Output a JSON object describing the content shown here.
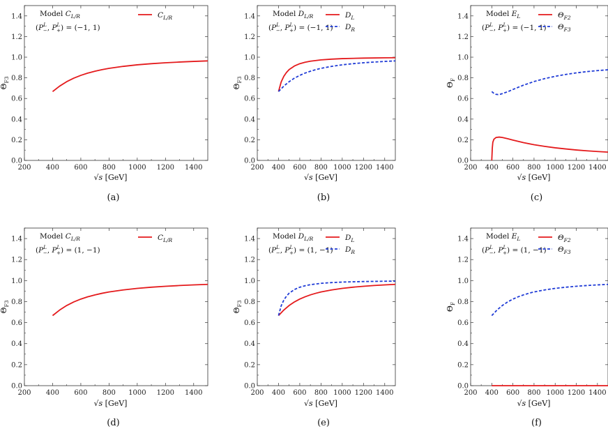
{
  "charts": [
    {
      "caption": "(a)",
      "ylabel": "Θ_F3",
      "ylabel_main": "Θ",
      "ylabel_sub": "F3",
      "xlabel_sqrt": "√s",
      "xlabel_unit": "[GeV]",
      "annotation": {
        "model": "Model C",
        "model_sub": "L/R",
        "pol": "(P",
        "pol_values": "(−1, 1)"
      },
      "series": [
        {
          "name": "C_{L/R}",
          "label_main": "C",
          "label_sub": "L/R",
          "color": "#e41a1c",
          "dash": "solid",
          "x": [
            400,
            450,
            500,
            550,
            600,
            650,
            700,
            750,
            800,
            900,
            1000,
            1100,
            1200,
            1300,
            1400,
            1500
          ],
          "y": [
            0.667,
            0.72,
            0.763,
            0.797,
            0.824,
            0.846,
            0.864,
            0.879,
            0.892,
            0.911,
            0.926,
            0.937,
            0.946,
            0.953,
            0.959,
            0.964
          ]
        }
      ]
    },
    {
      "caption": "(b)",
      "ylabel_main": "Θ",
      "ylabel_sub": "F3",
      "xlabel_sqrt": "√s",
      "xlabel_unit": "[GeV]",
      "annotation": {
        "model": "Model D",
        "model_sub": "L/R",
        "pol_values": "(−1, 1)"
      },
      "series": [
        {
          "name": "D_L",
          "label_main": "D",
          "label_sub": "L",
          "color": "#e41a1c",
          "dash": "solid",
          "x": [
            400,
            425,
            450,
            475,
            500,
            550,
            600,
            650,
            700,
            800,
            900,
            1000,
            1200,
            1400,
            1500
          ],
          "y": [
            0.667,
            0.76,
            0.815,
            0.852,
            0.88,
            0.915,
            0.937,
            0.951,
            0.961,
            0.974,
            0.981,
            0.986,
            0.991,
            0.994,
            0.995
          ]
        },
        {
          "name": "D_R",
          "label_main": "D",
          "label_sub": "R",
          "color": "#1f3bd6",
          "dash": "dashed",
          "x": [
            400,
            450,
            500,
            550,
            600,
            650,
            700,
            750,
            800,
            900,
            1000,
            1100,
            1200,
            1300,
            1400,
            1500
          ],
          "y": [
            0.667,
            0.72,
            0.763,
            0.797,
            0.824,
            0.846,
            0.864,
            0.879,
            0.892,
            0.911,
            0.926,
            0.937,
            0.946,
            0.953,
            0.959,
            0.964
          ]
        }
      ]
    },
    {
      "caption": "(c)",
      "ylabel_main": "Θ",
      "ylabel_sub": "F",
      "xlabel_sqrt": "√s",
      "xlabel_unit": "[GeV]",
      "annotation": {
        "model": "Model E",
        "model_sub": "L",
        "pol_values": "(−1, 1)"
      },
      "series": [
        {
          "name": "Θ_F2",
          "label_main": "Θ",
          "label_sub": "F2",
          "color": "#e41a1c",
          "dash": "solid",
          "x": [
            400,
            405,
            410,
            420,
            440,
            470,
            500,
            550,
            600,
            700,
            800,
            900,
            1000,
            1100,
            1200,
            1300,
            1400,
            1500
          ],
          "y": [
            0.0,
            0.12,
            0.175,
            0.205,
            0.222,
            0.226,
            0.222,
            0.21,
            0.197,
            0.172,
            0.152,
            0.136,
            0.122,
            0.111,
            0.101,
            0.093,
            0.086,
            0.08
          ]
        },
        {
          "name": "Θ_F3",
          "label_main": "Θ",
          "label_sub": "F3",
          "color": "#1f3bd6",
          "dash": "dashed",
          "x": [
            400,
            420,
            440,
            460,
            480,
            500,
            550,
            600,
            700,
            800,
            900,
            1000,
            1100,
            1200,
            1300,
            1400,
            1500
          ],
          "y": [
            0.667,
            0.65,
            0.64,
            0.638,
            0.641,
            0.647,
            0.665,
            0.687,
            0.729,
            0.764,
            0.792,
            0.815,
            0.833,
            0.848,
            0.86,
            0.87,
            0.878
          ]
        }
      ]
    },
    {
      "caption": "(d)",
      "ylabel_main": "Θ",
      "ylabel_sub": "F3",
      "xlabel_sqrt": "√s",
      "xlabel_unit": "[GeV]",
      "annotation": {
        "model": "Model C",
        "model_sub": "L/R",
        "pol_values": "(1, −1)"
      },
      "series": [
        {
          "name": "C_{L/R}",
          "label_main": "C",
          "label_sub": "L/R",
          "color": "#e41a1c",
          "dash": "solid",
          "x": [
            400,
            450,
            500,
            550,
            600,
            650,
            700,
            750,
            800,
            900,
            1000,
            1100,
            1200,
            1300,
            1400,
            1500
          ],
          "y": [
            0.667,
            0.72,
            0.763,
            0.797,
            0.824,
            0.846,
            0.864,
            0.879,
            0.892,
            0.911,
            0.926,
            0.937,
            0.946,
            0.953,
            0.959,
            0.964
          ]
        }
      ]
    },
    {
      "caption": "(e)",
      "ylabel_main": "Θ",
      "ylabel_sub": "F3",
      "xlabel_sqrt": "√s",
      "xlabel_unit": "[GeV]",
      "annotation": {
        "model": "Model D",
        "model_sub": "L/R",
        "pol_values": "(1, −1)"
      },
      "series": [
        {
          "name": "D_L",
          "label_main": "D",
          "label_sub": "L",
          "color": "#e41a1c",
          "dash": "solid",
          "x": [
            400,
            450,
            500,
            550,
            600,
            650,
            700,
            750,
            800,
            900,
            1000,
            1100,
            1200,
            1300,
            1400,
            1500
          ],
          "y": [
            0.667,
            0.72,
            0.763,
            0.797,
            0.824,
            0.846,
            0.864,
            0.879,
            0.892,
            0.911,
            0.926,
            0.937,
            0.946,
            0.953,
            0.959,
            0.964
          ]
        },
        {
          "name": "D_R",
          "label_main": "D",
          "label_sub": "R",
          "color": "#1f3bd6",
          "dash": "dashed",
          "x": [
            400,
            425,
            450,
            475,
            500,
            550,
            600,
            650,
            700,
            800,
            900,
            1000,
            1200,
            1400,
            1500
          ],
          "y": [
            0.667,
            0.76,
            0.815,
            0.852,
            0.88,
            0.915,
            0.937,
            0.951,
            0.961,
            0.974,
            0.981,
            0.986,
            0.991,
            0.994,
            0.995
          ]
        }
      ]
    },
    {
      "caption": "(f)",
      "ylabel_main": "Θ",
      "ylabel_sub": "F",
      "xlabel_sqrt": "√s",
      "xlabel_unit": "[GeV]",
      "annotation": {
        "model": "Model E",
        "model_sub": "L",
        "pol_values": "(1, −1)"
      },
      "series": [
        {
          "name": "Θ_F2",
          "label_main": "Θ",
          "label_sub": "F2",
          "color": "#e41a1c",
          "dash": "solid",
          "x": [
            400,
            1500
          ],
          "y": [
            0.0,
            0.0
          ]
        },
        {
          "name": "Θ_F3",
          "label_main": "Θ",
          "label_sub": "F3",
          "color": "#1f3bd6",
          "dash": "dashed",
          "x": [
            400,
            450,
            500,
            550,
            600,
            650,
            700,
            750,
            800,
            900,
            1000,
            1100,
            1200,
            1300,
            1400,
            1500
          ],
          "y": [
            0.667,
            0.72,
            0.763,
            0.797,
            0.824,
            0.846,
            0.864,
            0.879,
            0.892,
            0.911,
            0.926,
            0.937,
            0.946,
            0.953,
            0.959,
            0.964
          ]
        }
      ]
    }
  ],
  "chart_data": [
    {
      "type": "line",
      "panel": "(a)",
      "ylabel": "Θ_F3",
      "xlabel": "√s [GeV]",
      "xlim": [
        200,
        1500
      ],
      "ylim": [
        0,
        1.5
      ],
      "xticks": [
        200,
        400,
        600,
        800,
        1000,
        1200,
        1400
      ],
      "yticks": [
        0.0,
        0.2,
        0.4,
        0.6,
        0.8,
        1.0,
        1.2,
        1.4
      ],
      "annotations": [
        "Model C_{L/R}",
        "(P^L_−, P^L_+) = (−1, 1)"
      ],
      "legend": "top-right",
      "series": [
        {
          "name": "C_{L/R}",
          "x": [
            400,
            500,
            600,
            700,
            800,
            1000,
            1200,
            1500
          ],
          "y": [
            0.667,
            0.763,
            0.824,
            0.864,
            0.892,
            0.926,
            0.946,
            0.964
          ]
        }
      ]
    },
    {
      "type": "line",
      "panel": "(b)",
      "ylabel": "Θ_F3",
      "xlabel": "√s [GeV]",
      "xlim": [
        200,
        1500
      ],
      "ylim": [
        0,
        1.5
      ],
      "xticks": [
        200,
        400,
        600,
        800,
        1000,
        1200,
        1400
      ],
      "yticks": [
        0.0,
        0.2,
        0.4,
        0.6,
        0.8,
        1.0,
        1.2,
        1.4
      ],
      "annotations": [
        "Model D_{L/R}",
        "(P^L_−, P^L_+) = (−1, 1)"
      ],
      "legend": "top-right",
      "series": [
        {
          "name": "D_L",
          "x": [
            400,
            500,
            600,
            800,
            1000,
            1500
          ],
          "y": [
            0.667,
            0.88,
            0.937,
            0.974,
            0.986,
            0.995
          ]
        },
        {
          "name": "D_R",
          "x": [
            400,
            500,
            600,
            800,
            1000,
            1500
          ],
          "y": [
            0.667,
            0.763,
            0.824,
            0.892,
            0.926,
            0.964
          ]
        }
      ]
    },
    {
      "type": "line",
      "panel": "(c)",
      "ylabel": "Θ_F",
      "xlabel": "√s [GeV]",
      "xlim": [
        200,
        1500
      ],
      "ylim": [
        0,
        1.5
      ],
      "xticks": [
        200,
        400,
        600,
        800,
        1000,
        1200,
        1400
      ],
      "yticks": [
        0.0,
        0.2,
        0.4,
        0.6,
        0.8,
        1.0,
        1.2,
        1.4
      ],
      "annotations": [
        "Model E_L",
        "(P^L_−, P^L_+) = (−1, 1)"
      ],
      "legend": "top-right",
      "series": [
        {
          "name": "Θ_F2",
          "x": [
            400,
            470,
            600,
            800,
            1000,
            1500
          ],
          "y": [
            0.0,
            0.226,
            0.197,
            0.152,
            0.122,
            0.08
          ]
        },
        {
          "name": "Θ_F3",
          "x": [
            400,
            460,
            600,
            800,
            1000,
            1500
          ],
          "y": [
            0.667,
            0.638,
            0.687,
            0.764,
            0.815,
            0.878
          ]
        }
      ]
    },
    {
      "type": "line",
      "panel": "(d)",
      "ylabel": "Θ_F3",
      "xlabel": "√s [GeV]",
      "xlim": [
        200,
        1500
      ],
      "ylim": [
        0,
        1.5
      ],
      "xticks": [
        200,
        400,
        600,
        800,
        1000,
        1200,
        1400
      ],
      "yticks": [
        0.0,
        0.2,
        0.4,
        0.6,
        0.8,
        1.0,
        1.2,
        1.4
      ],
      "annotations": [
        "Model C_{L/R}",
        "(P^L_−, P^L_+) = (1, −1)"
      ],
      "legend": "top-right",
      "series": [
        {
          "name": "C_{L/R}",
          "x": [
            400,
            500,
            600,
            700,
            800,
            1000,
            1200,
            1500
          ],
          "y": [
            0.667,
            0.763,
            0.824,
            0.864,
            0.892,
            0.926,
            0.946,
            0.964
          ]
        }
      ]
    },
    {
      "type": "line",
      "panel": "(e)",
      "ylabel": "Θ_F3",
      "xlabel": "√s [GeV]",
      "xlim": [
        200,
        1500
      ],
      "ylim": [
        0,
        1.5
      ],
      "xticks": [
        200,
        400,
        600,
        800,
        1000,
        1200,
        1400
      ],
      "yticks": [
        0.0,
        0.2,
        0.4,
        0.6,
        0.8,
        1.0,
        1.2,
        1.4
      ],
      "annotations": [
        "Model D_{L/R}",
        "(P^L_−, P^L_+) = (1, −1)"
      ],
      "legend": "top-right",
      "series": [
        {
          "name": "D_L",
          "x": [
            400,
            500,
            600,
            800,
            1000,
            1500
          ],
          "y": [
            0.667,
            0.763,
            0.824,
            0.892,
            0.926,
            0.964
          ]
        },
        {
          "name": "D_R",
          "x": [
            400,
            500,
            600,
            800,
            1000,
            1500
          ],
          "y": [
            0.667,
            0.88,
            0.937,
            0.974,
            0.986,
            0.995
          ]
        }
      ]
    },
    {
      "type": "line",
      "panel": "(f)",
      "ylabel": "Θ_F",
      "xlabel": "√s [GeV]",
      "xlim": [
        200,
        1500
      ],
      "ylim": [
        0,
        1.5
      ],
      "xticks": [
        200,
        400,
        600,
        800,
        1000,
        1200,
        1400
      ],
      "yticks": [
        0.0,
        0.2,
        0.4,
        0.6,
        0.8,
        1.0,
        1.2,
        1.4
      ],
      "annotations": [
        "Model E_L",
        "(P^L_−, P^L_+) = (1, −1)"
      ],
      "legend": "top-right",
      "series": [
        {
          "name": "Θ_F2",
          "x": [
            400,
            1500
          ],
          "y": [
            0.0,
            0.0
          ]
        },
        {
          "name": "Θ_F3",
          "x": [
            400,
            500,
            600,
            800,
            1000,
            1500
          ],
          "y": [
            0.667,
            0.763,
            0.824,
            0.892,
            0.926,
            0.964
          ]
        }
      ]
    }
  ],
  "axes": {
    "xlim": [
      200,
      1500
    ],
    "ylim": [
      0,
      1.5
    ],
    "xticks": [
      "200",
      "400",
      "600",
      "800",
      "1000",
      "1200",
      "1400"
    ],
    "yticks": [
      "0.0",
      "0.2",
      "0.4",
      "0.6",
      "0.8",
      "1.0",
      "1.2",
      "1.4"
    ],
    "xtick_values": [
      200,
      400,
      600,
      800,
      1000,
      1200,
      1400
    ],
    "ytick_values": [
      0.0,
      0.2,
      0.4,
      0.6,
      0.8,
      1.0,
      1.2,
      1.4
    ]
  }
}
